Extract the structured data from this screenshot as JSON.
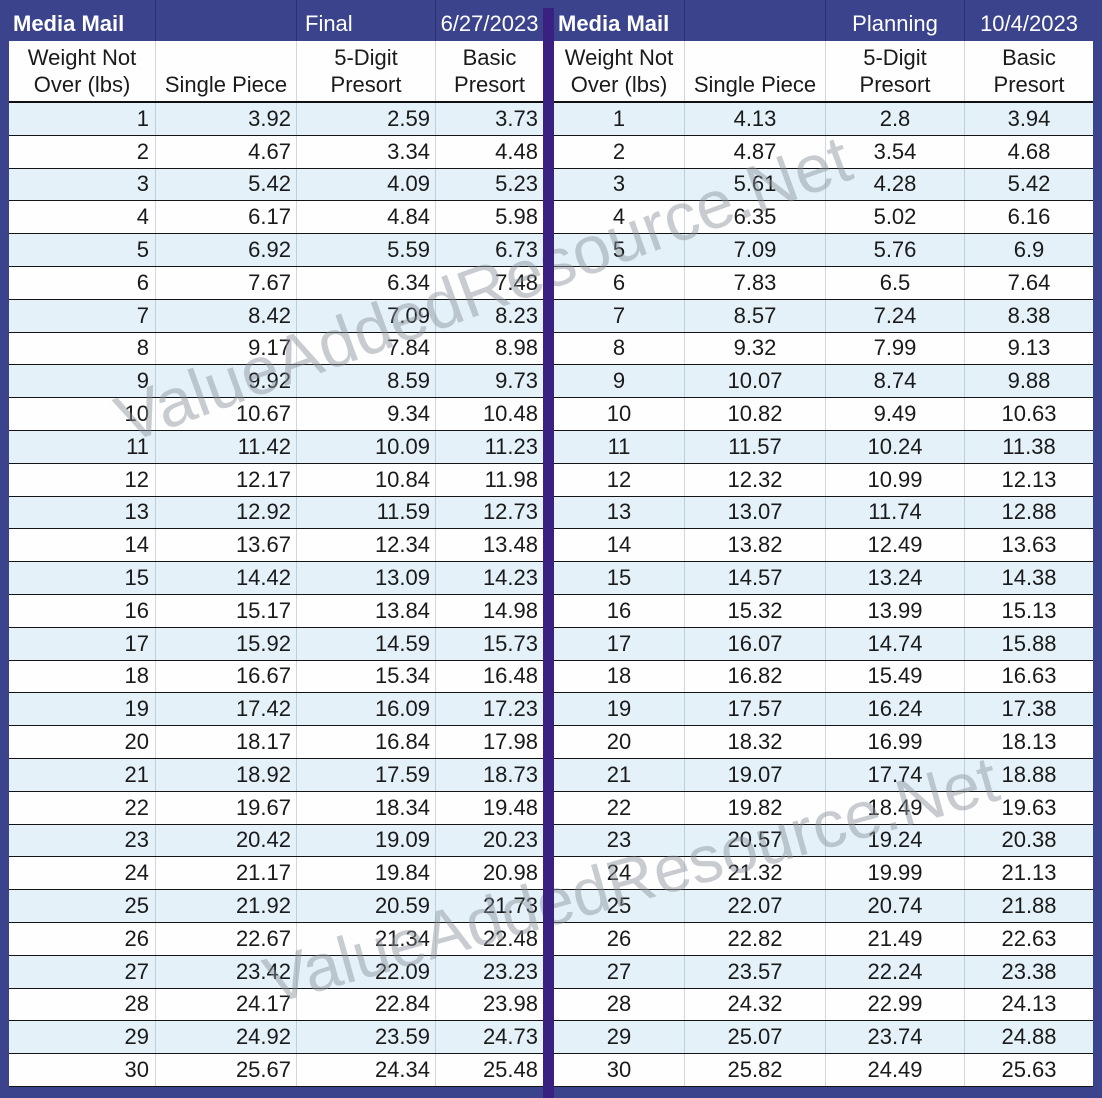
{
  "watermark": {
    "text": "ValueAddedResource.Net",
    "color": "#868E97"
  },
  "colors": {
    "frame_navy": "#3B438C",
    "divider_purple": "#3A2080",
    "row_shade_blue": "#E4F1F8",
    "row_plain_white": "#FEFEFF",
    "header_text_white": "#FFFFFF",
    "body_text_black": "#1A1A1A"
  },
  "tables": [
    {
      "title": "Media Mail",
      "status": "Final",
      "date": "6/27/2023",
      "columns": [
        "Weight Not Over (lbs)",
        "Single Piece",
        "5-Digit Presort",
        "Basic Presort"
      ],
      "rows": [
        [
          "1",
          "3.92",
          "2.59",
          "3.73"
        ],
        [
          "2",
          "4.67",
          "3.34",
          "4.48"
        ],
        [
          "3",
          "5.42",
          "4.09",
          "5.23"
        ],
        [
          "4",
          "6.17",
          "4.84",
          "5.98"
        ],
        [
          "5",
          "6.92",
          "5.59",
          "6.73"
        ],
        [
          "6",
          "7.67",
          "6.34",
          "7.48"
        ],
        [
          "7",
          "8.42",
          "7.09",
          "8.23"
        ],
        [
          "8",
          "9.17",
          "7.84",
          "8.98"
        ],
        [
          "9",
          "9.92",
          "8.59",
          "9.73"
        ],
        [
          "10",
          "10.67",
          "9.34",
          "10.48"
        ],
        [
          "11",
          "11.42",
          "10.09",
          "11.23"
        ],
        [
          "12",
          "12.17",
          "10.84",
          "11.98"
        ],
        [
          "13",
          "12.92",
          "11.59",
          "12.73"
        ],
        [
          "14",
          "13.67",
          "12.34",
          "13.48"
        ],
        [
          "15",
          "14.42",
          "13.09",
          "14.23"
        ],
        [
          "16",
          "15.17",
          "13.84",
          "14.98"
        ],
        [
          "17",
          "15.92",
          "14.59",
          "15.73"
        ],
        [
          "18",
          "16.67",
          "15.34",
          "16.48"
        ],
        [
          "19",
          "17.42",
          "16.09",
          "17.23"
        ],
        [
          "20",
          "18.17",
          "16.84",
          "17.98"
        ],
        [
          "21",
          "18.92",
          "17.59",
          "18.73"
        ],
        [
          "22",
          "19.67",
          "18.34",
          "19.48"
        ],
        [
          "23",
          "20.42",
          "19.09",
          "20.23"
        ],
        [
          "24",
          "21.17",
          "19.84",
          "20.98"
        ],
        [
          "25",
          "21.92",
          "20.59",
          "21.73"
        ],
        [
          "26",
          "22.67",
          "21.34",
          "22.48"
        ],
        [
          "27",
          "23.42",
          "22.09",
          "23.23"
        ],
        [
          "28",
          "24.17",
          "22.84",
          "23.98"
        ],
        [
          "29",
          "24.92",
          "23.59",
          "24.73"
        ],
        [
          "30",
          "25.67",
          "24.34",
          "25.48"
        ]
      ]
    },
    {
      "title": "Media Mail",
      "status": "Planning",
      "date": "10/4/2023",
      "columns": [
        "Weight Not Over (lbs)",
        "Single Piece",
        "5-Digit Presort",
        "Basic Presort"
      ],
      "rows": [
        [
          "1",
          "4.13",
          "2.8",
          "3.94"
        ],
        [
          "2",
          "4.87",
          "3.54",
          "4.68"
        ],
        [
          "3",
          "5.61",
          "4.28",
          "5.42"
        ],
        [
          "4",
          "6.35",
          "5.02",
          "6.16"
        ],
        [
          "5",
          "7.09",
          "5.76",
          "6.9"
        ],
        [
          "6",
          "7.83",
          "6.5",
          "7.64"
        ],
        [
          "7",
          "8.57",
          "7.24",
          "8.38"
        ],
        [
          "8",
          "9.32",
          "7.99",
          "9.13"
        ],
        [
          "9",
          "10.07",
          "8.74",
          "9.88"
        ],
        [
          "10",
          "10.82",
          "9.49",
          "10.63"
        ],
        [
          "11",
          "11.57",
          "10.24",
          "11.38"
        ],
        [
          "12",
          "12.32",
          "10.99",
          "12.13"
        ],
        [
          "13",
          "13.07",
          "11.74",
          "12.88"
        ],
        [
          "14",
          "13.82",
          "12.49",
          "13.63"
        ],
        [
          "15",
          "14.57",
          "13.24",
          "14.38"
        ],
        [
          "16",
          "15.32",
          "13.99",
          "15.13"
        ],
        [
          "17",
          "16.07",
          "14.74",
          "15.88"
        ],
        [
          "18",
          "16.82",
          "15.49",
          "16.63"
        ],
        [
          "19",
          "17.57",
          "16.24",
          "17.38"
        ],
        [
          "20",
          "18.32",
          "16.99",
          "18.13"
        ],
        [
          "21",
          "19.07",
          "17.74",
          "18.88"
        ],
        [
          "22",
          "19.82",
          "18.49",
          "19.63"
        ],
        [
          "23",
          "20.57",
          "19.24",
          "20.38"
        ],
        [
          "24",
          "21.32",
          "19.99",
          "21.13"
        ],
        [
          "25",
          "22.07",
          "20.74",
          "21.88"
        ],
        [
          "26",
          "22.82",
          "21.49",
          "22.63"
        ],
        [
          "27",
          "23.57",
          "22.24",
          "23.38"
        ],
        [
          "28",
          "24.32",
          "22.99",
          "24.13"
        ],
        [
          "29",
          "25.07",
          "23.74",
          "24.88"
        ],
        [
          "30",
          "25.82",
          "24.49",
          "25.63"
        ]
      ]
    }
  ]
}
